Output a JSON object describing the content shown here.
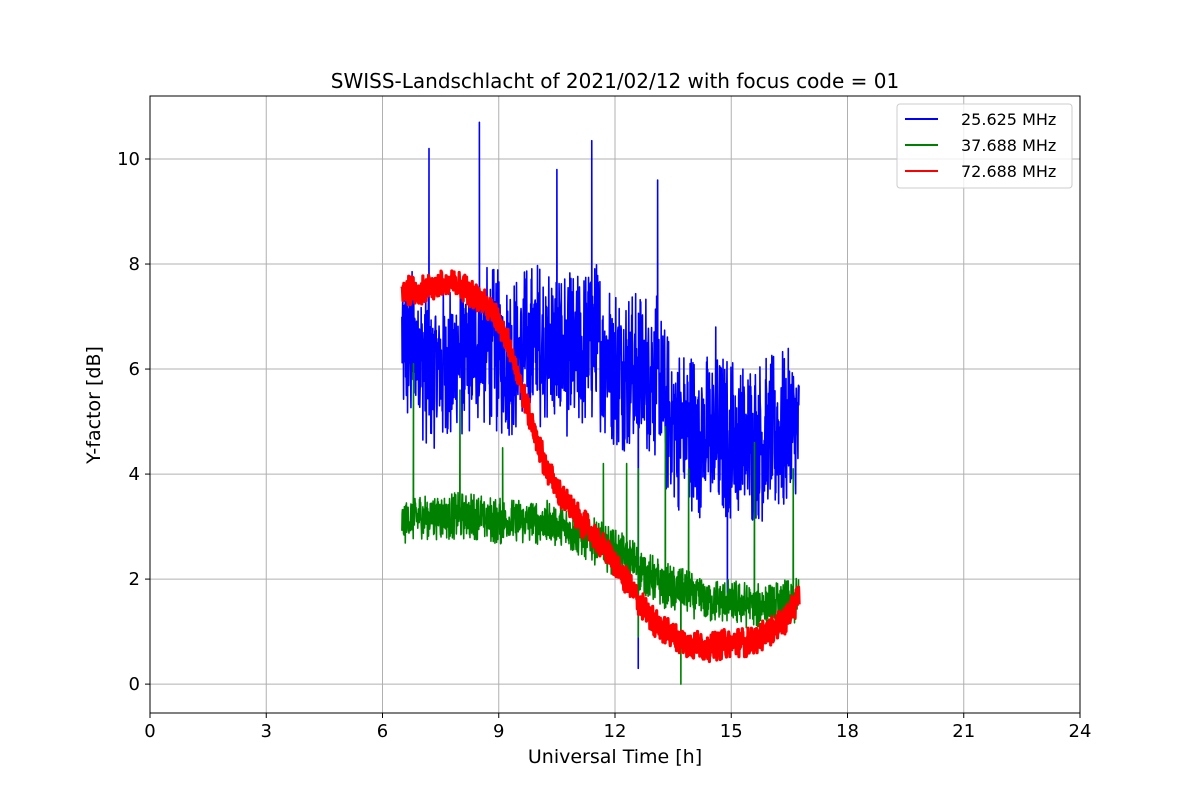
{
  "chart_data": {
    "type": "line",
    "title": "SWISS-Landschlacht of 2021/02/12 with focus code = 01",
    "xlabel": "Universal Time [h]",
    "ylabel": "Y-factor [dB]",
    "xlim": [
      0,
      24
    ],
    "ylim": [
      -0.55,
      11.2
    ],
    "xticks": [
      0,
      3,
      6,
      9,
      12,
      15,
      18,
      21,
      24
    ],
    "yticks": [
      0,
      2,
      4,
      6,
      8,
      10
    ],
    "grid": true,
    "legend_position": "top-right",
    "series": [
      {
        "name": "25.625 MHz",
        "color": "#0000ff",
        "noise": 1.6,
        "spikes": [
          [
            7.2,
            10.2
          ],
          [
            8.5,
            10.7
          ],
          [
            11.4,
            10.35
          ],
          [
            10.5,
            9.8
          ],
          [
            13.1,
            9.6
          ],
          [
            14.6,
            6.8
          ],
          [
            15.9,
            6.2
          ],
          [
            12.6,
            0.3
          ],
          [
            14.9,
            1.4
          ]
        ],
        "x": [
          6.5,
          7.0,
          7.5,
          8.0,
          8.5,
          9.0,
          9.5,
          10.0,
          10.5,
          11.0,
          11.5,
          12.0,
          12.5,
          13.0,
          13.3,
          13.6,
          14.0,
          14.5,
          15.0,
          15.5,
          16.0,
          16.5,
          16.75
        ],
        "y": [
          6.5,
          6.2,
          6.0,
          6.2,
          6.5,
          6.3,
          6.3,
          6.5,
          6.4,
          6.2,
          6.5,
          6.1,
          5.9,
          6.0,
          5.2,
          4.9,
          4.8,
          4.7,
          4.7,
          4.6,
          4.7,
          4.8,
          4.8
        ]
      },
      {
        "name": "37.688 MHz",
        "color": "#008000",
        "noise": 0.45,
        "spikes": [
          [
            6.8,
            6.1
          ],
          [
            8.0,
            5.6
          ],
          [
            9.1,
            4.5
          ],
          [
            11.7,
            4.2
          ],
          [
            12.3,
            4.2
          ],
          [
            12.6,
            4.1
          ],
          [
            13.3,
            4.9
          ],
          [
            13.9,
            4.1
          ],
          [
            15.6,
            4.6
          ],
          [
            16.6,
            4.1
          ],
          [
            13.7,
            0.0
          ],
          [
            12.6,
            0.9
          ]
        ],
        "x": [
          6.5,
          7.0,
          7.5,
          8.0,
          8.5,
          9.0,
          9.5,
          10.0,
          10.5,
          11.0,
          11.5,
          12.0,
          12.5,
          13.0,
          13.5,
          14.0,
          14.5,
          15.0,
          15.5,
          16.0,
          16.5,
          16.75
        ],
        "y": [
          3.1,
          3.2,
          3.2,
          3.2,
          3.2,
          3.1,
          3.1,
          3.1,
          3.0,
          2.9,
          2.7,
          2.5,
          2.3,
          2.0,
          1.8,
          1.7,
          1.6,
          1.55,
          1.5,
          1.5,
          1.55,
          1.6
        ]
      },
      {
        "name": "72.688 MHz",
        "color": "#ff0000",
        "noise": 0.28,
        "spikes": [],
        "x": [
          6.5,
          7.0,
          7.5,
          8.0,
          8.3,
          8.7,
          9.0,
          9.3,
          9.6,
          10.0,
          10.3,
          10.6,
          11.0,
          11.5,
          12.0,
          12.5,
          13.0,
          13.5,
          14.0,
          14.5,
          15.0,
          15.5,
          16.0,
          16.5,
          16.75
        ],
        "y": [
          7.5,
          7.5,
          7.6,
          7.6,
          7.45,
          7.2,
          6.9,
          6.4,
          5.6,
          4.6,
          4.0,
          3.6,
          3.2,
          2.8,
          2.3,
          1.7,
          1.2,
          0.9,
          0.75,
          0.7,
          0.8,
          0.8,
          1.0,
          1.3,
          1.7
        ]
      }
    ]
  }
}
